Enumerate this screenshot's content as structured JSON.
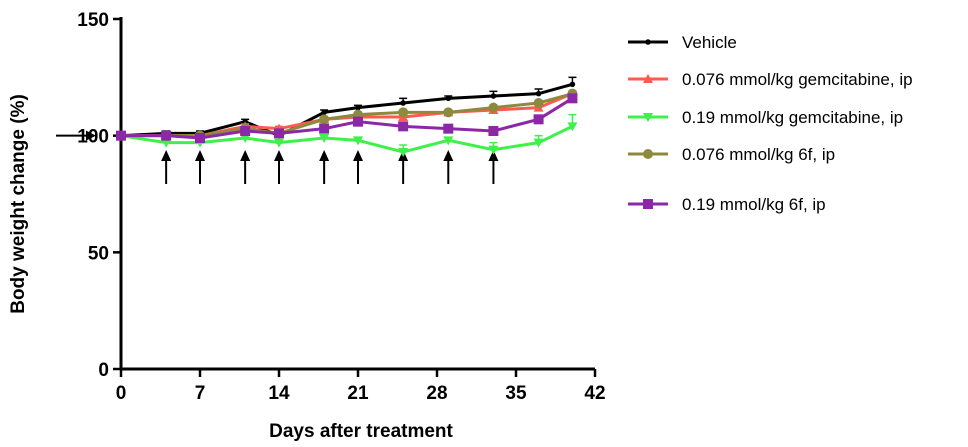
{
  "chart_data": {
    "type": "line",
    "xlabel": "Days after treatment",
    "ylabel": "Body weight change (%)",
    "xlim": [
      0,
      42
    ],
    "ylim": [
      0,
      150
    ],
    "xticks": [
      "0",
      "7",
      "14",
      "21",
      "28",
      "35",
      "42"
    ],
    "yticks": [
      "0",
      "50",
      "100",
      "150"
    ],
    "reference_value": 100,
    "dosing_days": [
      4,
      7,
      11,
      14,
      18,
      21,
      25,
      29,
      33
    ],
    "legend_position": "right",
    "series": [
      {
        "name": "Vehicle",
        "color": "#000000",
        "marker": "dot",
        "x": [
          0,
          4,
          7,
          11,
          14,
          18,
          21,
          25,
          29,
          33,
          37,
          40
        ],
        "y": [
          100,
          101,
          101,
          106,
          100,
          110,
          112,
          114,
          116,
          117,
          118,
          122
        ],
        "err": [
          0,
          1,
          1,
          1,
          1,
          1,
          1,
          2,
          1,
          2,
          2,
          3
        ]
      },
      {
        "name": "0.076 mmol/kg gemcitabine, ip",
        "color": "#ff5a4e",
        "marker": "triangle",
        "x": [
          0,
          4,
          7,
          11,
          14,
          18,
          21,
          25,
          29,
          33,
          37,
          40
        ],
        "y": [
          100,
          100,
          100,
          104,
          103,
          107,
          108,
          108,
          110,
          111,
          112,
          118
        ],
        "err": [
          0,
          1,
          1,
          1,
          1,
          1,
          1,
          1,
          1,
          1,
          1,
          1
        ]
      },
      {
        "name": "0.19 mmol/kg gemcitabine, ip",
        "color": "#3ef04a",
        "marker": "triangle-down",
        "x": [
          0,
          4,
          7,
          11,
          14,
          18,
          21,
          25,
          29,
          33,
          37,
          40
        ],
        "y": [
          100,
          97,
          97,
          99,
          97,
          99,
          98,
          93,
          98,
          94,
          97,
          104
        ],
        "err": [
          0,
          1,
          1,
          1,
          1,
          1,
          1,
          3,
          1,
          3,
          3,
          5
        ]
      },
      {
        "name": "0.076 mmol/kg 6f, ip",
        "color": "#8d8a3e",
        "marker": "circle",
        "x": [
          0,
          4,
          7,
          11,
          14,
          18,
          21,
          25,
          29,
          33,
          37,
          40
        ],
        "y": [
          100,
          100,
          100,
          103,
          101,
          107,
          109,
          110,
          110,
          112,
          114,
          118
        ],
        "err": [
          0,
          1,
          1,
          1,
          1,
          1,
          1,
          1,
          1,
          1,
          1,
          1
        ]
      },
      {
        "name": "0.19 mmol/kg 6f, ip",
        "color": "#8c28a8",
        "marker": "square",
        "x": [
          0,
          4,
          7,
          11,
          14,
          18,
          21,
          25,
          29,
          33,
          37,
          40
        ],
        "y": [
          100,
          100,
          99,
          102,
          101,
          103,
          106,
          104,
          103,
          102,
          107,
          116
        ],
        "err": [
          0,
          1,
          1,
          1,
          1,
          1,
          1,
          1,
          1,
          1,
          1,
          1
        ]
      }
    ]
  }
}
